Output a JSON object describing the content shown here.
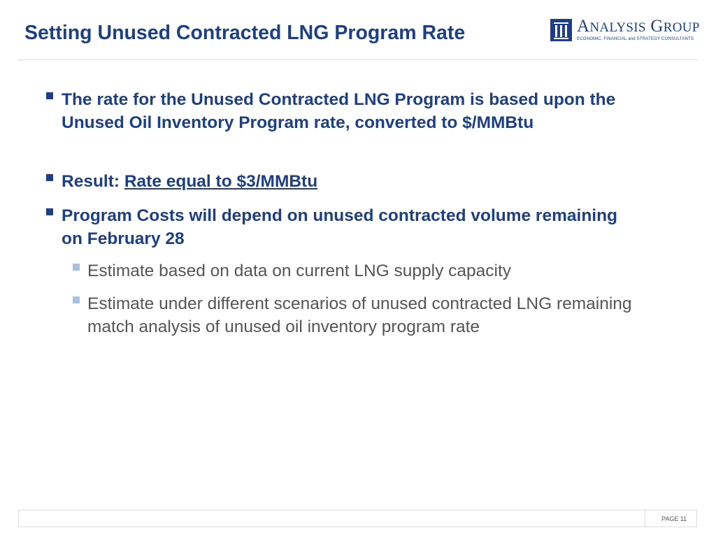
{
  "slide": {
    "title": "Setting Unused Contracted LNG Program Rate"
  },
  "logo": {
    "name_first_initial": "A",
    "name_first_rest": "NALYSIS",
    "name_second_initial": "G",
    "name_second_rest": "ROUP",
    "tagline": "ECONOMIC, FINANCIAL and STRATEGY CONSULTANTS",
    "brand_color": "#1c3f86"
  },
  "bullets": {
    "b1": "The rate for the Unused Contracted LNG Program is based upon the Unused Oil Inventory Program rate, converted to $/MMBtu",
    "b2_prefix": "Result: ",
    "b2_link": "Rate equal to $3/MMBtu",
    "b3": "Program Costs will depend on unused contracted volume remaining on February 28",
    "b3_sub1": "Estimate based on data on current LNG supply capacity",
    "b3_sub2": "Estimate under different scenarios of unused contracted LNG remaining match analysis of unused oil inventory program rate"
  },
  "footer": {
    "page_label": "PAGE 11"
  },
  "colors": {
    "title": "#1c3f86",
    "primary_bullet": "#1c3f86",
    "secondary_bullet": "#a9c1de",
    "secondary_text": "#555555"
  }
}
